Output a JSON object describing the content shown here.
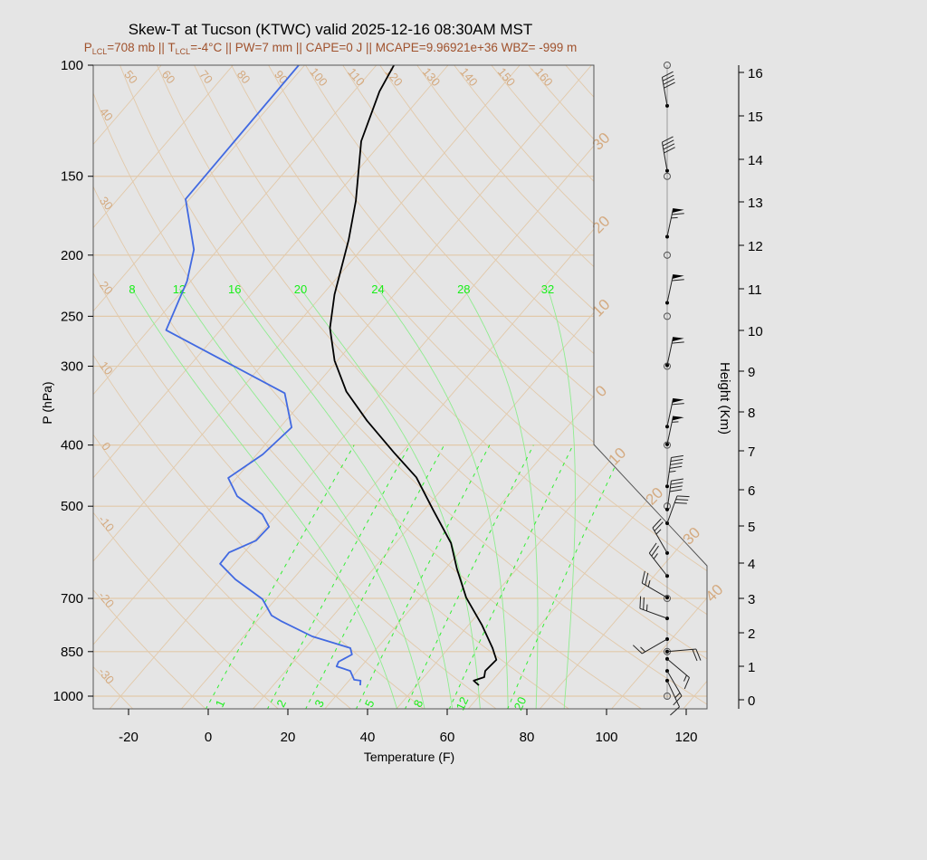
{
  "title": "Skew-T at Tucson (KTWC) valid 2025-12-16 08:30AM MST",
  "subtitle": {
    "p_sym": "P",
    "p_sub": "LCL",
    "p_val": "=708 mb || ",
    "t_sym": "T",
    "t_sub": "LCL",
    "t_val": "=-4°C || PW=7 mm || CAPE=0 J || MCAPE=9.96921e+36 WBZ= -999 m"
  },
  "colors": {
    "temperature": "#000000",
    "dewpoint": "#4169e1",
    "isotherm": "#e2c9aa",
    "moist_adiabat": "#8fec8f",
    "mixing_ratio": "#33ee33",
    "subtitle": "#a0522d",
    "background": "#e5e5e5"
  },
  "chart_data": {
    "type": "line",
    "title": "Skew-T at Tucson (KTWC) valid 2025-12-16 08:30AM MST",
    "xlabel": "Temperature (F)",
    "ylabel": "P (hPa)",
    "y2label": "Height (Km)",
    "y_scale": "log",
    "ylim": [
      1050,
      100
    ],
    "xlim": [
      -29,
      126
    ],
    "x_ticks": [
      "-20",
      "0",
      "20",
      "40",
      "60",
      "80",
      "100",
      "120"
    ],
    "y_ticks": [
      "100",
      "150",
      "200",
      "250",
      "300",
      "400",
      "500",
      "700",
      "850",
      "1000"
    ],
    "height_ticks": [
      "0",
      "1",
      "2",
      "3",
      "4",
      "5",
      "6",
      "7",
      "8",
      "9",
      "10",
      "11",
      "12",
      "13",
      "14",
      "15",
      "16"
    ],
    "dry_adiabat_labels_top": [
      "50",
      "60",
      "70",
      "80",
      "90",
      "100",
      "110",
      "120",
      "130",
      "140",
      "150",
      "160"
    ],
    "dry_adiabat_labels_left": [
      "40",
      "30",
      "20",
      "10",
      "0",
      "-10",
      "-20",
      "-30"
    ],
    "isotherm_labels": [
      "30",
      "20",
      "10",
      "0",
      "10",
      "20",
      "30",
      "40"
    ],
    "moist_adiabat_labels": [
      "8",
      "12",
      "16",
      "20",
      "24",
      "28",
      "32"
    ],
    "mixing_ratio_labels": [
      "1",
      "2",
      "3",
      "5",
      "8",
      "12",
      "20"
    ],
    "series": [
      {
        "key": "temperature",
        "pressure": [
          100,
          110,
          132,
          164,
          189,
          231,
          261,
          294,
          329,
          366,
          411,
          450,
          506,
          572,
          628,
          698,
          770,
          839,
          876,
          912,
          933,
          945,
          961
        ],
        "temp_f": [
          -89.6,
          -87.6,
          -81.4,
          -69.9,
          -63.3,
          -55,
          -48.9,
          -40.7,
          -31.1,
          -19.6,
          -6,
          5,
          16.1,
          27.9,
          34.9,
          43.5,
          53.2,
          61,
          64.5,
          64.1,
          65.2,
          63.3,
          65.6
        ]
      },
      {
        "key": "dewpoint",
        "pressure": [
          100,
          163,
          196,
          220,
          263,
          331,
          375,
          414,
          451,
          482,
          515,
          539,
          567,
          592,
          617,
          653,
          702,
          745,
          760,
          804,
          839,
          859,
          882,
          897,
          912,
          942,
          945,
          961
        ],
        "temp_f": [
          -113.5,
          -113,
          -100,
          -94.9,
          -89.6,
          -46.2,
          -37.1,
          -38.5,
          -42.1,
          -35.9,
          -25.7,
          -21.3,
          -21.6,
          -25.8,
          -25.6,
          -18.4,
          -7.3,
          -1.5,
          2,
          13.2,
          25.3,
          27.1,
          25.3,
          25.8,
          30.2,
          33.1,
          34.9,
          35.8
        ]
      }
    ],
    "winds": [
      {
        "p": 116,
        "dir": 350,
        "kt": 40
      },
      {
        "p": 147,
        "dir": 350,
        "kt": 40
      },
      {
        "p": 187,
        "dir": 12,
        "kt": 65
      },
      {
        "p": 238,
        "dir": 12,
        "kt": 60
      },
      {
        "p": 299,
        "dir": 12,
        "kt": 60
      },
      {
        "p": 374,
        "dir": 12,
        "kt": 60
      },
      {
        "p": 399,
        "dir": 12,
        "kt": 55
      },
      {
        "p": 465,
        "dir": 8,
        "kt": 45
      },
      {
        "p": 506,
        "dir": 8,
        "kt": 40
      },
      {
        "p": 532,
        "dir": 20,
        "kt": 30
      },
      {
        "p": 593,
        "dir": 330,
        "kt": 25
      },
      {
        "p": 645,
        "dir": 322,
        "kt": 25
      },
      {
        "p": 698,
        "dir": 300,
        "kt": 25
      },
      {
        "p": 753,
        "dir": 290,
        "kt": 25
      },
      {
        "p": 812,
        "dir": 240,
        "kt": 15
      },
      {
        "p": 850,
        "dir": 85,
        "kt": 20
      },
      {
        "p": 873,
        "dir": 130,
        "kt": 15
      },
      {
        "p": 912,
        "dir": 150,
        "kt": 15
      },
      {
        "p": 945,
        "dir": 155,
        "kt": 12
      }
    ]
  }
}
